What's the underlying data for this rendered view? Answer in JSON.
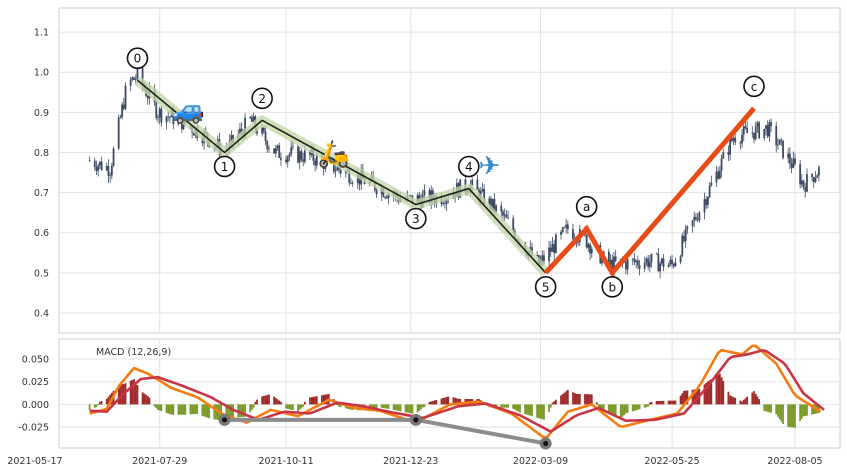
{
  "chart_data": [
    {
      "type": "candlestick",
      "title": "",
      "x_axis": {
        "type": "date",
        "range": [
          "2021-05-17",
          "2022-08-31"
        ],
        "tick_labels": [
          "2021-05-17",
          "2021-07-29",
          "2021-10-11",
          "2021-12-23",
          "2022-03-09",
          "2022-05-25",
          "2022-08-05"
        ]
      },
      "y_axis": {
        "range": [
          0.35,
          1.16
        ],
        "tick_labels": [
          "0.4",
          "0.5",
          "0.6",
          "0.7",
          "0.8",
          "0.9",
          "1.0",
          "1.1"
        ]
      },
      "grid": true,
      "price_anchors": [
        {
          "date": "2021-06-18",
          "value": 0.78
        },
        {
          "date": "2021-06-30",
          "value": 0.76
        },
        {
          "date": "2021-07-10",
          "value": 0.97
        },
        {
          "date": "2021-07-16",
          "value": 0.99
        },
        {
          "date": "2021-07-28",
          "value": 0.9
        },
        {
          "date": "2021-08-10",
          "value": 0.88
        },
        {
          "date": "2021-08-25",
          "value": 0.84
        },
        {
          "date": "2021-09-05",
          "value": 0.8
        },
        {
          "date": "2021-09-20",
          "value": 0.88
        },
        {
          "date": "2021-10-05",
          "value": 0.8
        },
        {
          "date": "2021-10-25",
          "value": 0.79
        },
        {
          "date": "2021-11-10",
          "value": 0.76
        },
        {
          "date": "2021-12-01",
          "value": 0.72
        },
        {
          "date": "2021-12-20",
          "value": 0.68
        },
        {
          "date": "2022-01-10",
          "value": 0.69
        },
        {
          "date": "2022-01-26",
          "value": 0.72
        },
        {
          "date": "2022-02-15",
          "value": 0.64
        },
        {
          "date": "2022-03-08",
          "value": 0.52
        },
        {
          "date": "2022-03-25",
          "value": 0.61
        },
        {
          "date": "2022-04-05",
          "value": 0.58
        },
        {
          "date": "2022-04-18",
          "value": 0.52
        },
        {
          "date": "2022-05-10",
          "value": 0.53
        },
        {
          "date": "2022-05-25",
          "value": 0.52
        },
        {
          "date": "2022-06-15",
          "value": 0.7
        },
        {
          "date": "2022-06-30",
          "value": 0.84
        },
        {
          "date": "2022-07-20",
          "value": 0.86
        },
        {
          "date": "2022-08-05",
          "value": 0.76
        },
        {
          "date": "2022-08-10",
          "value": 0.72
        },
        {
          "date": "2022-08-20",
          "value": 0.76
        }
      ],
      "impulse_wave": [
        {
          "label": "0",
          "date": "2021-07-16",
          "value": 0.98
        },
        {
          "label": "1",
          "date": "2021-09-05",
          "value": 0.8
        },
        {
          "label": "2",
          "date": "2021-09-27",
          "value": 0.88
        },
        {
          "label": "3",
          "date": "2021-12-26",
          "value": 0.67
        },
        {
          "label": "4",
          "date": "2022-01-26",
          "value": 0.71
        },
        {
          "label": "5",
          "date": "2022-03-12",
          "value": 0.5
        }
      ],
      "corrective_wave": [
        {
          "label": "5",
          "date": "2022-03-12",
          "value": 0.5
        },
        {
          "label": "a",
          "date": "2022-04-05",
          "value": 0.61
        },
        {
          "label": "b",
          "date": "2022-04-20",
          "value": 0.5
        },
        {
          "label": "c",
          "date": "2022-07-12",
          "value": 0.91
        }
      ],
      "colors": {
        "candle": "#3d4a64",
        "impulse_line": "#1c2418",
        "impulse_band": "#c3d5a8",
        "corrective_line": "#e84b16",
        "grid": "#e3e3e3",
        "frame": "#cfcfcf"
      },
      "emoji_markers": [
        {
          "icon": "car",
          "date": "2021-08-15",
          "value": 0.91
        },
        {
          "icon": "scooter",
          "date": "2021-11-08",
          "value": 0.8
        },
        {
          "icon": "airplane",
          "date": "2022-02-07",
          "value": 0.77
        }
      ]
    },
    {
      "type": "macd",
      "label": "MACD (12,26,9)",
      "x_axis": {
        "range": [
          "2021-05-17",
          "2022-08-31"
        ]
      },
      "y_axis": {
        "range": [
          -0.048,
          0.072
        ],
        "tick_labels": [
          "0.050",
          "0.025",
          "0.000",
          "-0.025"
        ]
      },
      "macd_anchors": [
        {
          "date": "2021-06-18",
          "value": -0.01
        },
        {
          "date": "2021-06-28",
          "value": -0.005
        },
        {
          "date": "2021-07-05",
          "value": 0.02
        },
        {
          "date": "2021-07-14",
          "value": 0.04
        },
        {
          "date": "2021-07-22",
          "value": 0.034
        },
        {
          "date": "2021-08-05",
          "value": 0.018
        },
        {
          "date": "2021-08-20",
          "value": 0.008
        },
        {
          "date": "2021-09-05",
          "value": -0.012
        },
        {
          "date": "2021-09-18",
          "value": -0.02
        },
        {
          "date": "2021-10-02",
          "value": -0.006
        },
        {
          "date": "2021-10-18",
          "value": -0.013
        },
        {
          "date": "2021-11-05",
          "value": 0.005
        },
        {
          "date": "2021-11-20",
          "value": -0.004
        },
        {
          "date": "2021-12-05",
          "value": -0.007
        },
        {
          "date": "2021-12-26",
          "value": -0.02
        },
        {
          "date": "2022-01-15",
          "value": 0.0
        },
        {
          "date": "2022-02-01",
          "value": 0.003
        },
        {
          "date": "2022-02-20",
          "value": -0.01
        },
        {
          "date": "2022-03-12",
          "value": -0.038
        },
        {
          "date": "2022-03-25",
          "value": -0.008
        },
        {
          "date": "2022-04-08",
          "value": 0.0
        },
        {
          "date": "2022-04-25",
          "value": -0.025
        },
        {
          "date": "2022-05-10",
          "value": -0.018
        },
        {
          "date": "2022-05-28",
          "value": -0.01
        },
        {
          "date": "2022-06-10",
          "value": 0.02
        },
        {
          "date": "2022-06-22",
          "value": 0.06
        },
        {
          "date": "2022-07-05",
          "value": 0.055
        },
        {
          "date": "2022-07-12",
          "value": 0.066
        },
        {
          "date": "2022-07-25",
          "value": 0.045
        },
        {
          "date": "2022-08-05",
          "value": 0.01
        },
        {
          "date": "2022-08-20",
          "value": -0.008
        }
      ],
      "signal_anchors": [
        {
          "date": "2021-06-18",
          "value": -0.007
        },
        {
          "date": "2021-06-28",
          "value": -0.008
        },
        {
          "date": "2021-07-08",
          "value": 0.012
        },
        {
          "date": "2021-07-18",
          "value": 0.028
        },
        {
          "date": "2021-07-28",
          "value": 0.03
        },
        {
          "date": "2021-08-12",
          "value": 0.02
        },
        {
          "date": "2021-08-28",
          "value": 0.008
        },
        {
          "date": "2021-09-10",
          "value": -0.006
        },
        {
          "date": "2021-09-25",
          "value": -0.017
        },
        {
          "date": "2021-10-10",
          "value": -0.008
        },
        {
          "date": "2021-10-25",
          "value": -0.01
        },
        {
          "date": "2021-11-10",
          "value": 0.002
        },
        {
          "date": "2021-11-25",
          "value": -0.002
        },
        {
          "date": "2021-12-10",
          "value": -0.008
        },
        {
          "date": "2021-12-30",
          "value": -0.015
        },
        {
          "date": "2022-01-20",
          "value": -0.002
        },
        {
          "date": "2022-02-05",
          "value": 0.001
        },
        {
          "date": "2022-02-25",
          "value": -0.012
        },
        {
          "date": "2022-03-15",
          "value": -0.03
        },
        {
          "date": "2022-03-30",
          "value": -0.012
        },
        {
          "date": "2022-04-12",
          "value": -0.004
        },
        {
          "date": "2022-04-28",
          "value": -0.018
        },
        {
          "date": "2022-05-15",
          "value": -0.017
        },
        {
          "date": "2022-06-01",
          "value": -0.01
        },
        {
          "date": "2022-06-15",
          "value": 0.02
        },
        {
          "date": "2022-06-28",
          "value": 0.052
        },
        {
          "date": "2022-07-08",
          "value": 0.055
        },
        {
          "date": "2022-07-18",
          "value": 0.06
        },
        {
          "date": "2022-07-30",
          "value": 0.045
        },
        {
          "date": "2022-08-10",
          "value": 0.012
        },
        {
          "date": "2022-08-22",
          "value": -0.006
        }
      ],
      "divergence_line": [
        {
          "date": "2021-09-05",
          "value": -0.017
        },
        {
          "date": "2021-12-26",
          "value": -0.017
        },
        {
          "date": "2022-03-12",
          "value": -0.043
        }
      ],
      "colors": {
        "macd_line": "#f57c0f",
        "signal_line": "#c93544",
        "hist_positive": "#a02b2b",
        "hist_negative": "#7a9a2a",
        "divergence": "#8c8c8c"
      }
    }
  ]
}
